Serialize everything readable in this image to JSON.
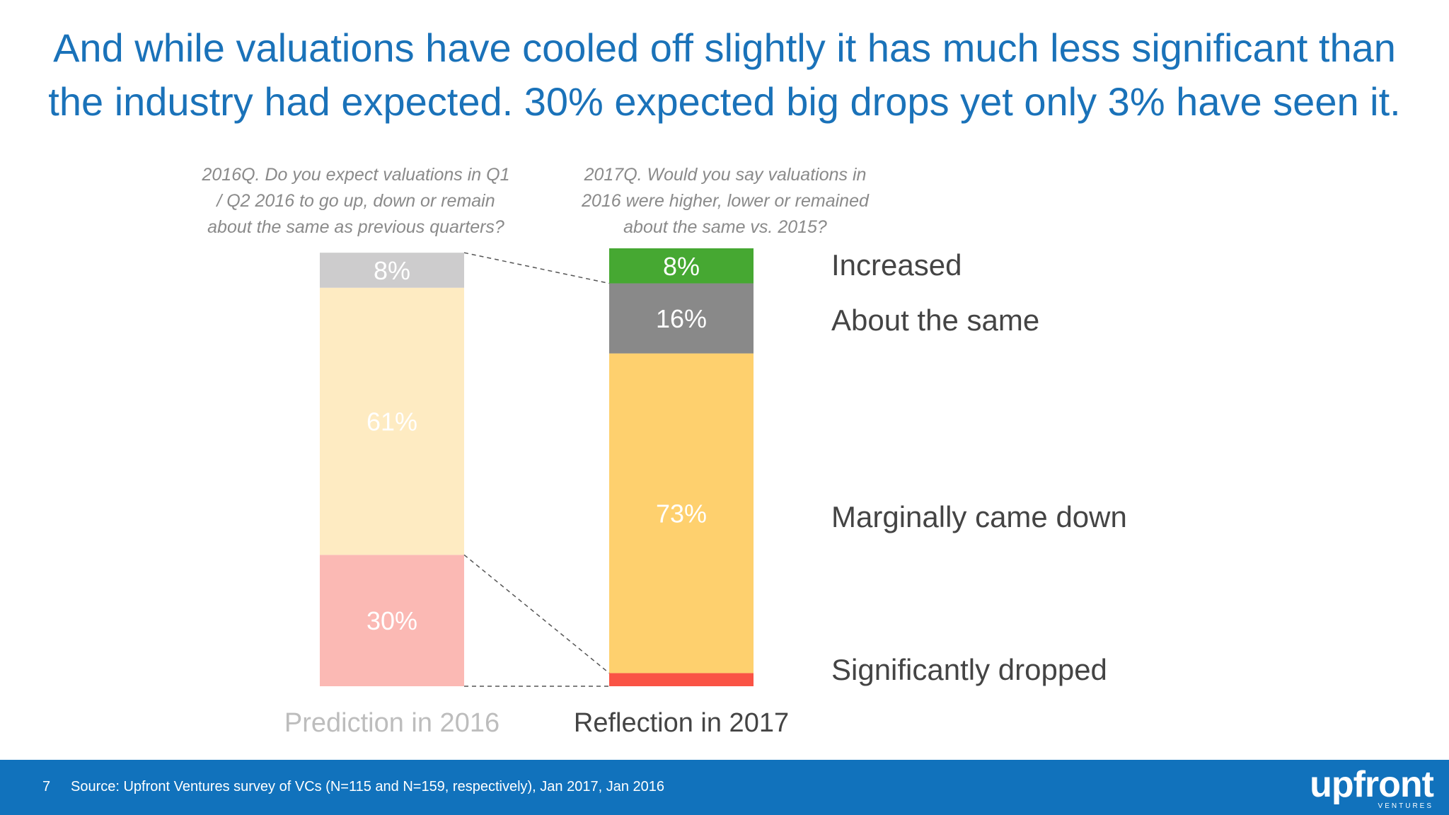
{
  "title": {
    "line1": "And while valuations have cooled off slightly it has much less significant than",
    "line2": "the industry had expected. 30% expected big drops yet only 3% have seen it."
  },
  "questions": [
    [
      "2016Q. Do you expect valuations in Q1",
      "/ Q2 2016 to go up, down or remain",
      "about the same as previous quarters?"
    ],
    [
      "2017Q. Would you say valuations in",
      "2016 were higher, lower or remained",
      "about the same vs. 2015?"
    ]
  ],
  "chart_data": {
    "type": "bar",
    "stacked": true,
    "categories": [
      "Prediction in 2016",
      "Reflection in 2017"
    ],
    "series": [
      {
        "name": "Significantly dropped",
        "values": [
          30,
          3
        ],
        "colors": [
          "#fbb9b4",
          "#fa5345"
        ]
      },
      {
        "name": "Marginally came down",
        "values": [
          61,
          73
        ],
        "colors": [
          "#feebc2",
          "#fed06e"
        ]
      },
      {
        "name": "About the same",
        "values": [
          null,
          16
        ],
        "colors": [
          "#cdcccd",
          "#898989"
        ]
      },
      {
        "name": "Increased",
        "values": [
          8,
          8
        ],
        "colors": [
          "#cdcccd",
          "#46a832"
        ]
      }
    ],
    "left_top_label": "8%",
    "data_labels": [
      [
        "30%",
        "61%",
        "8%"
      ],
      [
        "3%",
        "73%",
        "16%",
        "8%"
      ]
    ],
    "legend_placement": "right",
    "ylim": [
      0,
      100
    ]
  },
  "legend": [
    "Increased",
    "About the same",
    "Marginally came down",
    "Significantly dropped"
  ],
  "footer": {
    "page_number": "7",
    "source": "Source: Upfront Ventures survey of VCs (N=115 and N=159, respectively), Jan 2017, Jan 2016",
    "logo": "upfront",
    "logo_sub": "VENTURES",
    "color": "#1172bc"
  }
}
